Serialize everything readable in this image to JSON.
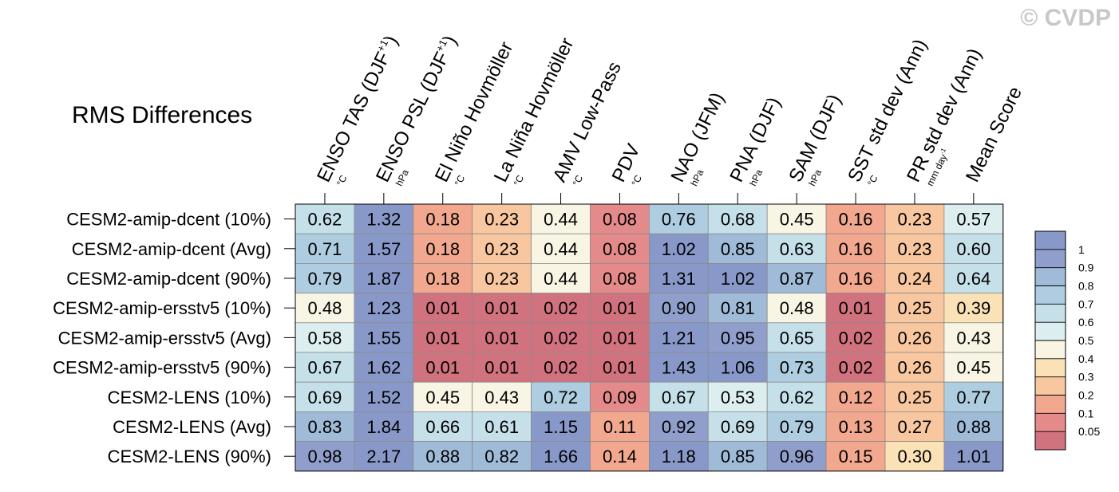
{
  "watermark": "© CVDP",
  "chart_data": {
    "type": "heatmap",
    "title": "RMS Differences",
    "columns": [
      {
        "name": "ENSO TAS (DJF",
        "sup": "+1",
        "close": ")",
        "unit": "°C"
      },
      {
        "name": "ENSO PSL (DJF",
        "sup": "+1",
        "close": ")",
        "unit": "hPa"
      },
      {
        "name": "El Niño Hovmöller",
        "sup": "",
        "close": "",
        "unit": "°C"
      },
      {
        "name": "La Niña Hovmöller",
        "sup": "",
        "close": "",
        "unit": "°C"
      },
      {
        "name": "AMV Low-Pass",
        "sup": "",
        "close": "",
        "unit": "°C"
      },
      {
        "name": "PDV",
        "sup": "",
        "close": "",
        "unit": "°C"
      },
      {
        "name": "NAO (JFM)",
        "sup": "",
        "close": "",
        "unit": "hPa"
      },
      {
        "name": "PNA (DJF)",
        "sup": "",
        "close": "",
        "unit": "hPa"
      },
      {
        "name": "SAM (DJF)",
        "sup": "",
        "close": "",
        "unit": "hPa"
      },
      {
        "name": "SST std dev (Ann)",
        "sup": "",
        "close": "",
        "unit": "°C"
      },
      {
        "name": "PR std dev (Ann)",
        "sup": "",
        "close": "",
        "unit": "mm day",
        "unit_sup": "-1"
      },
      {
        "name": "Mean Score",
        "sup": "",
        "close": "",
        "unit": ""
      }
    ],
    "rows": [
      "CESM2-amip-dcent (10%)",
      "CESM2-amip-dcent (Avg)",
      "CESM2-amip-dcent (90%)",
      "CESM2-amip-ersstv5 (10%)",
      "CESM2-amip-ersstv5 (Avg)",
      "CESM2-amip-ersstv5 (90%)",
      "CESM2-LENS (10%)",
      "CESM2-LENS (Avg)",
      "CESM2-LENS (90%)"
    ],
    "values": [
      [
        "0.62",
        "1.32",
        "0.18",
        "0.23",
        "0.44",
        "0.08",
        "0.76",
        "0.68",
        "0.45",
        "0.16",
        "0.23",
        "0.57"
      ],
      [
        "0.71",
        "1.57",
        "0.18",
        "0.23",
        "0.44",
        "0.08",
        "1.02",
        "0.85",
        "0.63",
        "0.16",
        "0.23",
        "0.60"
      ],
      [
        "0.79",
        "1.87",
        "0.18",
        "0.23",
        "0.44",
        "0.08",
        "1.31",
        "1.02",
        "0.87",
        "0.16",
        "0.24",
        "0.64"
      ],
      [
        "0.48",
        "1.23",
        "0.01",
        "0.01",
        "0.02",
        "0.01",
        "0.90",
        "0.81",
        "0.48",
        "0.01",
        "0.25",
        "0.39"
      ],
      [
        "0.58",
        "1.55",
        "0.01",
        "0.01",
        "0.02",
        "0.01",
        "1.21",
        "0.95",
        "0.65",
        "0.02",
        "0.26",
        "0.43"
      ],
      [
        "0.67",
        "1.62",
        "0.01",
        "0.01",
        "0.02",
        "0.01",
        "1.43",
        "1.06",
        "0.73",
        "0.02",
        "0.26",
        "0.45"
      ],
      [
        "0.69",
        "1.52",
        "0.45",
        "0.43",
        "0.72",
        "0.09",
        "0.67",
        "0.53",
        "0.62",
        "0.12",
        "0.25",
        "0.77"
      ],
      [
        "0.83",
        "1.84",
        "0.66",
        "0.61",
        "1.15",
        "0.11",
        "0.92",
        "0.69",
        "0.79",
        "0.13",
        "0.27",
        "0.88"
      ],
      [
        "0.98",
        "2.17",
        "0.88",
        "0.82",
        "1.66",
        "0.14",
        "1.18",
        "0.85",
        "0.96",
        "0.15",
        "0.30",
        "1.01"
      ]
    ],
    "legend": {
      "placement": "right",
      "levels": [
        "0.05",
        "0.1",
        "0.2",
        "0.3",
        "0.4",
        "0.5",
        "0.6",
        "0.7",
        "0.8",
        "0.9",
        "1"
      ],
      "colors": [
        "#d1727f",
        "#e48a8b",
        "#f2a88e",
        "#f8c79f",
        "#fbe2b6",
        "#f8f5e4",
        "#ddeef1",
        "#c6e0ea",
        "#afcde0",
        "#9fbbd8",
        "#8f9ecb",
        "#8898c9"
      ]
    }
  }
}
